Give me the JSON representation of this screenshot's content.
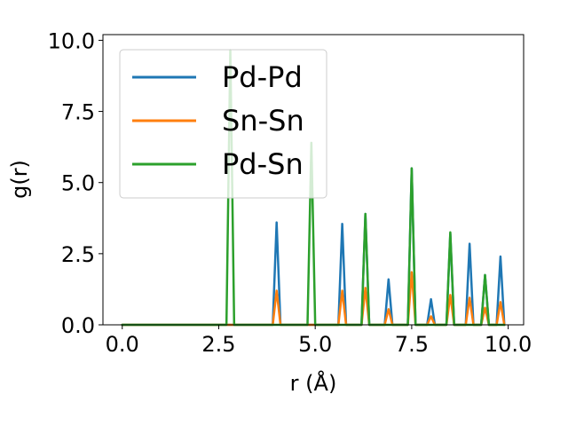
{
  "chart_data": {
    "type": "line",
    "xlabel": "r (Å)",
    "ylabel": "g(r)",
    "xlim": [
      -0.5,
      10.4
    ],
    "ylim": [
      0.0,
      10.2
    ],
    "x_ticks": [
      0.0,
      2.5,
      5.0,
      7.5,
      10.0
    ],
    "x_tick_labels": [
      "0.0",
      "2.5",
      "5.0",
      "7.5",
      "10.0"
    ],
    "y_ticks": [
      0.0,
      2.5,
      5.0,
      7.5,
      10.0
    ],
    "y_tick_labels": [
      "0.0",
      "2.5",
      "5.0",
      "7.5",
      "10.0"
    ],
    "grid": false,
    "legend_position": "upper left",
    "series": [
      {
        "name": "Pd-Pd",
        "color": "#1f77b4",
        "x": [
          0.0,
          3.9,
          4.0,
          4.1,
          5.6,
          5.7,
          5.8,
          6.2,
          6.3,
          6.4,
          6.8,
          6.9,
          7.0,
          7.4,
          7.5,
          7.6,
          7.9,
          8.0,
          8.1,
          8.4,
          8.5,
          8.6,
          8.9,
          9.0,
          9.1,
          9.3,
          9.4,
          9.5,
          9.7,
          9.8,
          9.9
        ],
        "y": [
          0.0,
          0.0,
          3.6,
          0.0,
          0.0,
          3.55,
          0.0,
          0.0,
          3.9,
          0.0,
          0.0,
          1.6,
          0.0,
          0.0,
          5.5,
          0.0,
          0.0,
          0.9,
          0.0,
          0.0,
          3.2,
          0.0,
          0.0,
          2.85,
          0.0,
          0.0,
          1.75,
          0.0,
          0.0,
          2.4,
          0.0
        ]
      },
      {
        "name": "Sn-Sn",
        "color": "#ff7f0e",
        "x": [
          0.0,
          3.9,
          4.0,
          4.1,
          5.6,
          5.7,
          5.8,
          6.2,
          6.3,
          6.4,
          6.8,
          6.9,
          7.0,
          7.4,
          7.5,
          7.6,
          7.9,
          8.0,
          8.1,
          8.4,
          8.5,
          8.6,
          8.9,
          9.0,
          9.1,
          9.3,
          9.4,
          9.5,
          9.7,
          9.8,
          9.9
        ],
        "y": [
          0.0,
          0.0,
          1.2,
          0.0,
          0.0,
          1.2,
          0.0,
          0.0,
          1.3,
          0.0,
          0.0,
          0.55,
          0.0,
          0.0,
          1.85,
          0.0,
          0.0,
          0.3,
          0.0,
          0.0,
          1.05,
          0.0,
          0.0,
          0.95,
          0.0,
          0.0,
          0.6,
          0.0,
          0.0,
          0.8,
          0.0
        ]
      },
      {
        "name": "Pd-Sn",
        "color": "#2ca02c",
        "x": [
          0.0,
          2.7,
          2.8,
          2.9,
          4.8,
          4.9,
          5.0,
          6.2,
          6.3,
          6.4,
          7.4,
          7.5,
          7.6,
          8.4,
          8.5,
          8.6,
          9.3,
          9.4,
          9.5,
          9.9
        ],
        "y": [
          0.0,
          0.0,
          9.65,
          0.0,
          0.0,
          6.4,
          0.0,
          0.0,
          3.9,
          0.0,
          0.0,
          5.5,
          0.0,
          0.0,
          3.25,
          0.0,
          0.0,
          1.75,
          0.0,
          0.0
        ]
      }
    ]
  }
}
